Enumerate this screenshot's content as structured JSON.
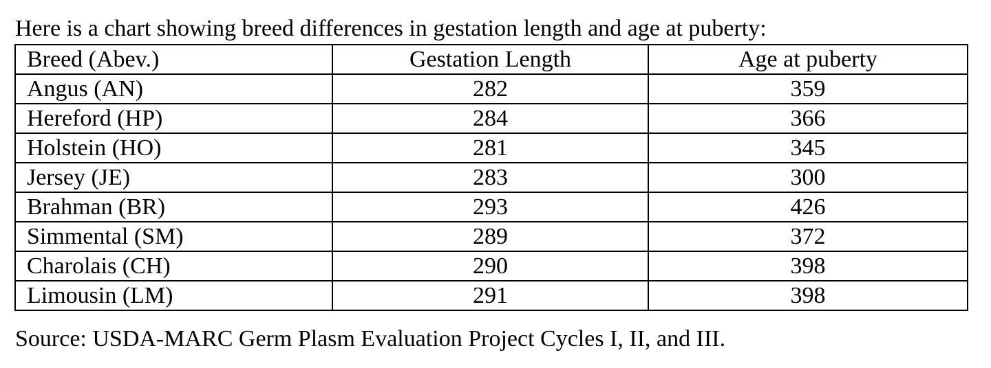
{
  "intro_text": "Here is a chart showing breed differences in gestation length and age at puberty:",
  "table": {
    "headers": {
      "breed": "Breed (Abev.)",
      "gestation": "Gestation Length",
      "puberty": "Age at puberty"
    },
    "rows": [
      {
        "breed": "Angus (AN)",
        "gestation": "282",
        "puberty": "359"
      },
      {
        "breed": "Hereford (HP)",
        "gestation": "284",
        "puberty": "366"
      },
      {
        "breed": "Holstein (HO)",
        "gestation": "281",
        "puberty": "345"
      },
      {
        "breed": "Jersey (JE)",
        "gestation": "283",
        "puberty": "300"
      },
      {
        "breed": "Brahman (BR)",
        "gestation": "293",
        "puberty": "426"
      },
      {
        "breed": "Simmental (SM)",
        "gestation": "289",
        "puberty": "372"
      },
      {
        "breed": "Charolais (CH)",
        "gestation": "290",
        "puberty": "398"
      },
      {
        "breed": "Limousin (LM)",
        "gestation": "291",
        "puberty": "398"
      }
    ]
  },
  "source_text": "Source: USDA-MARC Germ Plasm Evaluation Project Cycles I, II, and III."
}
